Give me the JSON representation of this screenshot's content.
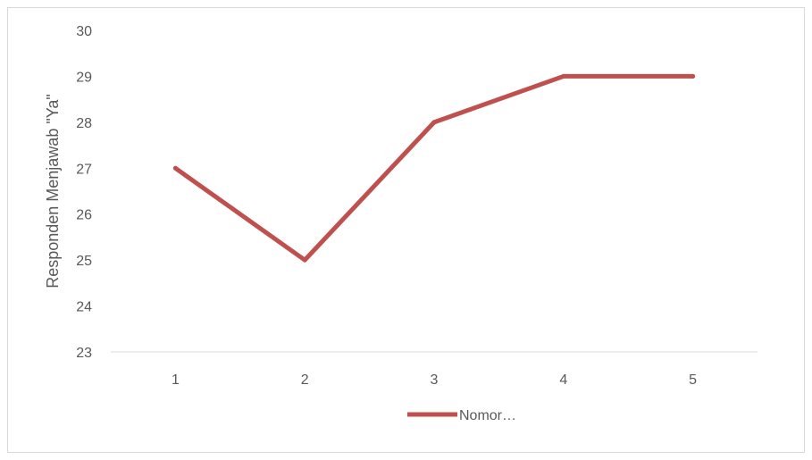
{
  "chart_data": {
    "type": "line",
    "title": "",
    "xlabel": "",
    "ylabel": "Responden Menjawab \"Ya\"",
    "categories": [
      "1",
      "2",
      "3",
      "4",
      "5"
    ],
    "series": [
      {
        "name": "Nomor…",
        "values": [
          27,
          25,
          28,
          29,
          29
        ],
        "color": "#c0504d"
      }
    ],
    "ylim": [
      23,
      30
    ],
    "yticks": [
      23,
      24,
      25,
      26,
      27,
      28,
      29,
      30
    ],
    "grid": false,
    "legend_position": "bottom",
    "axis_line_color": "#d9d9d9",
    "text_color": "#595959",
    "border_color": "#d9d9d9"
  }
}
